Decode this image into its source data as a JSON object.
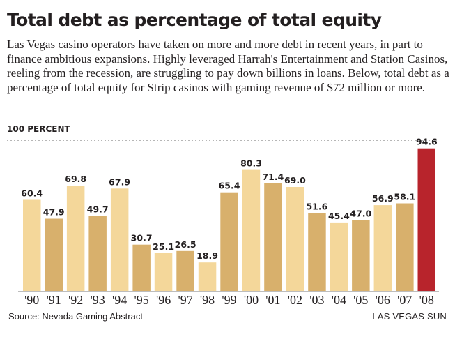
{
  "header": {
    "title": "Total debt as percentage of total equity",
    "subtitle": "Las Vegas casino operators have taken on more and more debt in recent years, in part to finance ambitious expansions. Highly leveraged Harrah's Entertainment and Station Casinos, reeling from the recession, are struggling to pay down billions in loans. Below, total debt as a percentage of total equity for Strip casinos with gaming revenue of $72 million or more."
  },
  "footer": {
    "source": "Source: Nevada Gaming Abstract",
    "credit": "LAS VEGAS SUN"
  },
  "colors": {
    "light_bar": "#f4d79a",
    "dark_bar": "#d8b06c",
    "highlight_bar": "#b8242c",
    "grid": "#8a8a8a",
    "text": "#231f20"
  },
  "chart_data": {
    "type": "bar",
    "reference_label": "100 PERCENT",
    "reference_value": 100,
    "ylim": [
      0,
      100
    ],
    "grid": false,
    "categories": [
      "'90",
      "'91",
      "'92",
      "'93",
      "'94",
      "'95",
      "'96",
      "'97",
      "'98",
      "'99",
      "'00",
      "'01",
      "'02",
      "'03",
      "'04",
      "'05",
      "'06",
      "'07",
      "'08"
    ],
    "values": [
      60.4,
      47.9,
      69.8,
      49.7,
      67.9,
      30.7,
      25.1,
      26.5,
      18.9,
      65.4,
      80.3,
      71.4,
      69.0,
      51.6,
      45.4,
      47.0,
      56.9,
      58.1,
      94.6
    ],
    "value_labels": [
      "60.4",
      "47.9",
      "69.8",
      "49.7",
      "67.9",
      "30.7",
      "25.1",
      "26.5",
      "18.9",
      "65.4",
      "80.3",
      "71.4",
      "69.0",
      "51.6",
      "45.4",
      "47.0",
      "56.9",
      "58.1",
      "94.6"
    ]
  }
}
